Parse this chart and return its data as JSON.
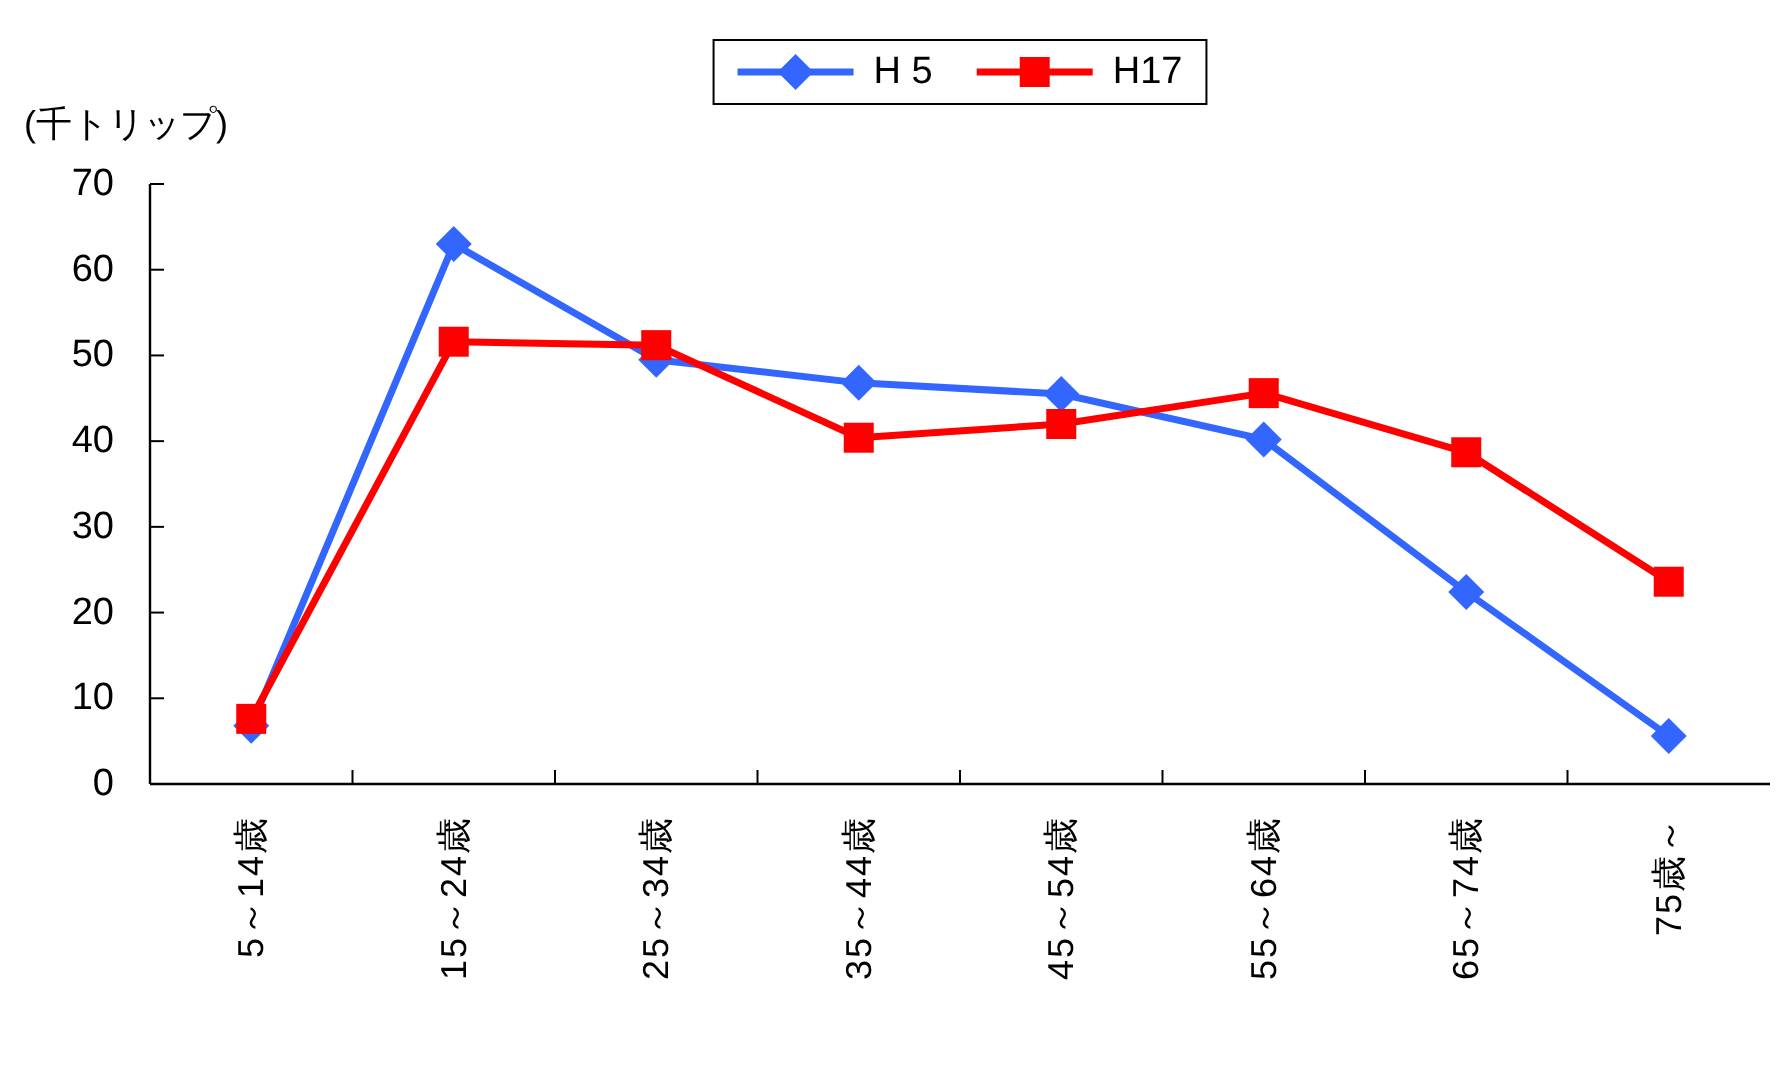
{
  "chart_data": {
    "type": "line",
    "ylabel": "(千トリップ)",
    "categories": [
      "5～14歳",
      "15～24歳",
      "25～34歳",
      "35～44歳",
      "45～54歳",
      "55～64歳",
      "65～74歳",
      "75歳～"
    ],
    "series": [
      {
        "name": "H 5",
        "color": "#3366ff",
        "marker": "diamond",
        "values": [
          6.8,
          63,
          49.5,
          46.8,
          45.5,
          40.2,
          22.4,
          5.6
        ]
      },
      {
        "name": "H17",
        "color": "#ff0000",
        "marker": "square",
        "values": [
          7.6,
          51.6,
          51.2,
          40.4,
          42,
          45.6,
          38.7,
          23.6
        ]
      }
    ],
    "ylim": [
      0,
      70
    ],
    "yticks": [
      0,
      10,
      20,
      30,
      40,
      50,
      60,
      70
    ],
    "legend": "top"
  }
}
